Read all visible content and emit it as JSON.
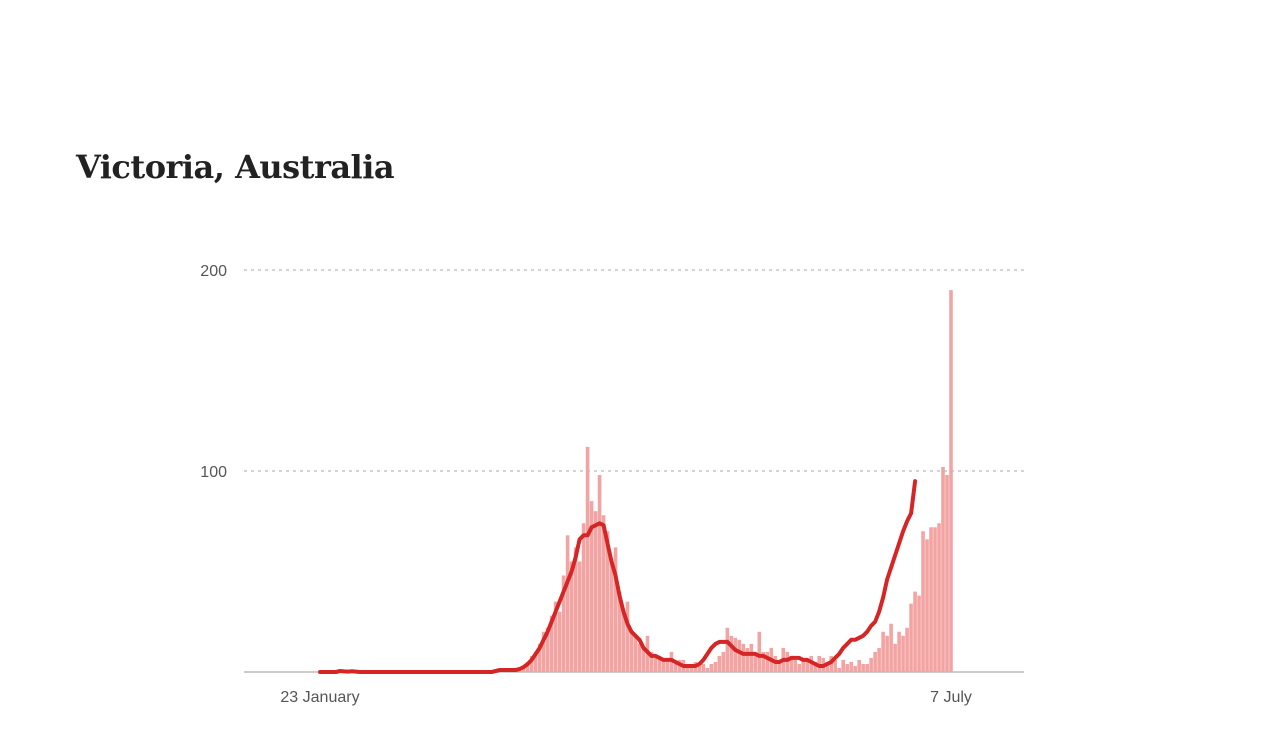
{
  "chart_data": {
    "type": "bar",
    "title": "Victoria, Australia",
    "xlabel": "",
    "ylabel": "",
    "ylim": [
      0,
      200
    ],
    "yticks": [
      100,
      200
    ],
    "grid": true,
    "legend": "none",
    "x_start": "2020-01-23",
    "x_end": "2020-07-07",
    "xtick_labels": [
      "23 January",
      "7 July"
    ],
    "colors": {
      "bars": "#f4a3a3",
      "line": "#d62525",
      "grid": "#aaaaaa",
      "axis": "#bbbbbb"
    },
    "values": [
      0,
      0,
      0,
      0,
      0,
      1,
      0,
      0,
      1,
      0,
      0,
      0,
      0,
      0,
      0,
      0,
      0,
      0,
      0,
      0,
      0,
      0,
      0,
      0,
      0,
      0,
      0,
      0,
      0,
      0,
      0,
      0,
      0,
      0,
      0,
      0,
      0,
      0,
      0,
      0,
      0,
      0,
      0,
      0,
      1,
      0,
      1,
      1,
      1,
      1,
      2,
      3,
      5,
      8,
      10,
      14,
      20,
      22,
      28,
      35,
      30,
      48,
      68,
      55,
      62,
      55,
      74,
      112,
      85,
      80,
      98,
      78,
      70,
      55,
      62,
      40,
      30,
      35,
      20,
      18,
      14,
      12,
      18,
      10,
      8,
      8,
      6,
      5,
      10,
      4,
      6,
      6,
      3,
      2,
      5,
      3,
      4,
      2,
      4,
      5,
      8,
      10,
      22,
      18,
      17,
      16,
      14,
      12,
      14,
      8,
      20,
      10,
      10,
      12,
      8,
      6,
      12,
      10,
      8,
      6,
      4,
      6,
      6,
      8,
      5,
      8,
      7,
      5,
      8,
      6,
      2,
      6,
      4,
      5,
      3,
      6,
      4,
      4,
      7,
      10,
      12,
      20,
      18,
      24,
      14,
      20,
      18,
      22,
      34,
      40,
      38,
      70,
      66,
      72,
      72,
      74,
      102,
      98,
      190
    ],
    "moving_average": [
      0,
      0,
      0,
      0,
      0,
      0.5,
      0.3,
      0.2,
      0.4,
      0.2,
      0,
      0,
      0,
      0,
      0,
      0,
      0,
      0,
      0,
      0,
      0,
      0,
      0,
      0,
      0,
      0,
      0,
      0,
      0,
      0,
      0,
      0,
      0,
      0,
      0,
      0,
      0,
      0,
      0,
      0,
      0,
      0,
      0,
      0,
      0.5,
      1,
      1,
      1,
      1,
      1,
      1.5,
      2.5,
      4,
      6,
      9,
      12,
      16,
      20,
      25,
      30,
      35,
      40,
      45,
      50,
      57,
      66,
      68,
      68,
      72,
      73,
      74,
      73,
      64,
      55,
      48,
      38,
      30,
      24,
      20,
      18,
      16,
      12,
      10,
      8,
      8,
      7,
      6,
      6,
      6,
      5,
      4,
      3,
      3,
      3,
      3,
      4,
      6,
      9,
      12,
      14,
      15,
      15,
      15,
      13,
      11,
      10,
      9,
      9,
      9,
      9,
      8,
      8,
      7,
      6,
      5,
      5,
      6,
      6,
      7,
      7,
      7,
      6,
      6,
      5,
      4,
      3,
      3,
      4,
      5,
      7,
      9,
      12,
      14,
      16,
      16,
      17,
      18,
      20,
      23,
      25,
      30,
      37,
      46,
      52,
      58,
      64,
      70,
      75,
      79,
      95
    ]
  }
}
